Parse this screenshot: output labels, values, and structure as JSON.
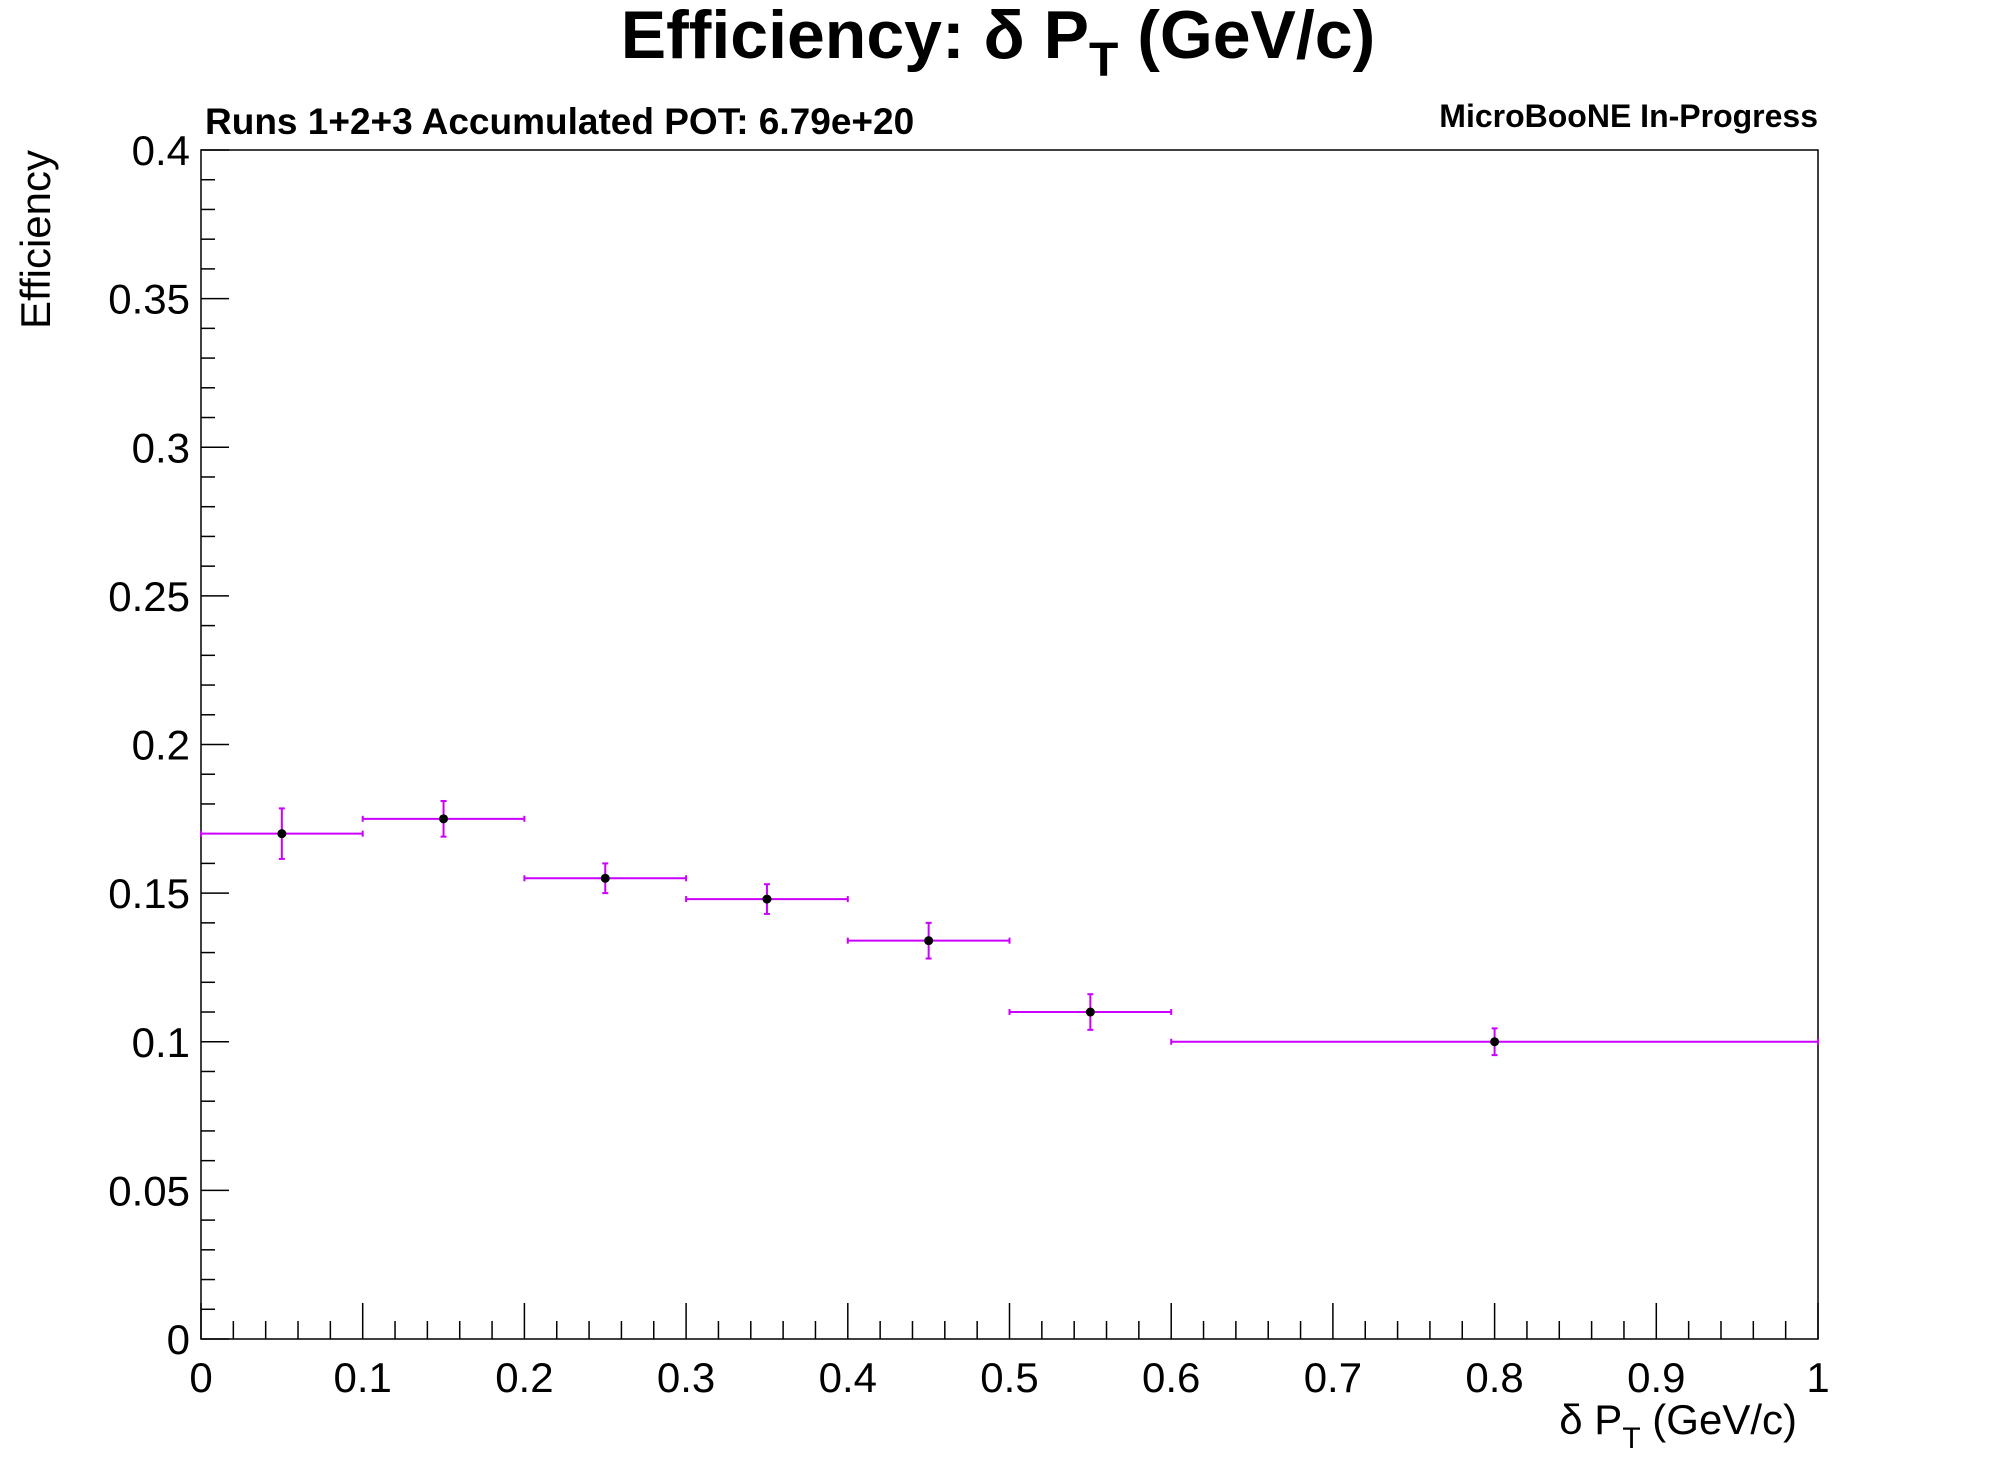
{
  "chart_data": {
    "type": "scatter",
    "title": "Efficiency:  δ P",
    "title_subscript": "T",
    "title_suffix": " (GeV/c)",
    "subtitle_left": "Runs 1+2+3 Accumulated POT: 6.79e+20",
    "subtitle_right": "MicroBooNE In-Progress",
    "xlabel": "δ P",
    "xlabel_subscript": "T",
    "xlabel_suffix": " (GeV/c)",
    "ylabel": "Efficiency",
    "xlim": [
      0,
      1
    ],
    "ylim": [
      0,
      0.4
    ],
    "xticks": [
      "0",
      "0.1",
      "0.2",
      "0.3",
      "0.4",
      "0.5",
      "0.6",
      "0.7",
      "0.8",
      "0.9",
      "1"
    ],
    "yticks": [
      "0",
      "0.05",
      "0.1",
      "0.15",
      "0.2",
      "0.25",
      "0.3",
      "0.35",
      "0.4"
    ],
    "grid": false,
    "legend": false,
    "error_bar_color": "#cc00ff",
    "marker_color": "#000000",
    "points": [
      {
        "x": 0.05,
        "xlow": 0.0,
        "xhigh": 0.1,
        "y": 0.17,
        "yerr": 0.0085
      },
      {
        "x": 0.15,
        "xlow": 0.1,
        "xhigh": 0.2,
        "y": 0.175,
        "yerr": 0.006
      },
      {
        "x": 0.25,
        "xlow": 0.2,
        "xhigh": 0.3,
        "y": 0.155,
        "yerr": 0.005
      },
      {
        "x": 0.35,
        "xlow": 0.3,
        "xhigh": 0.4,
        "y": 0.148,
        "yerr": 0.005
      },
      {
        "x": 0.45,
        "xlow": 0.4,
        "xhigh": 0.5,
        "y": 0.134,
        "yerr": 0.006
      },
      {
        "x": 0.55,
        "xlow": 0.5,
        "xhigh": 0.6,
        "y": 0.11,
        "yerr": 0.006
      },
      {
        "x": 0.8,
        "xlow": 0.6,
        "xhigh": 1.0,
        "y": 0.1,
        "yerr": 0.0045
      }
    ]
  }
}
